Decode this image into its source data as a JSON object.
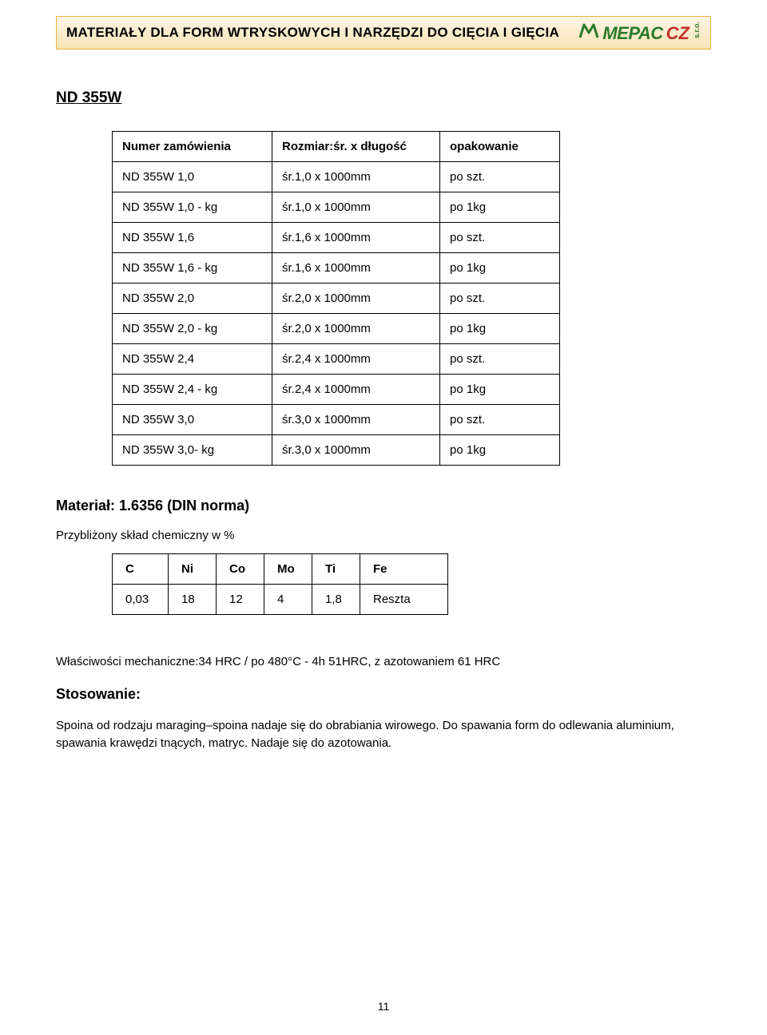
{
  "header": {
    "title": "MATERIAŁY DLA FORM WTRYSKOWYCH I NARZĘDZI DO CIĘCIA I GIĘCIA",
    "logo_main": "MEPAC",
    "logo_cz": "CZ",
    "logo_sro": "s.r.o."
  },
  "section_title": "ND 355W",
  "table1": {
    "headers": [
      "Numer zamówienia",
      "Rozmiar:śr. x długość",
      "opakowanie"
    ],
    "rows": [
      [
        "ND 355W 1,0",
        "śr.1,0 x 1000mm",
        "po szt."
      ],
      [
        "ND 355W 1,0 - kg",
        "śr.1,0 x 1000mm",
        "po 1kg"
      ],
      [
        "ND 355W 1,6",
        "śr.1,6 x 1000mm",
        "po szt."
      ],
      [
        "ND 355W 1,6 - kg",
        "śr.1,6 x 1000mm",
        "po 1kg"
      ],
      [
        "ND 355W 2,0",
        "śr.2,0 x 1000mm",
        "po szt."
      ],
      [
        "ND 355W 2,0 - kg",
        "śr.2,0 x 1000mm",
        "po 1kg"
      ],
      [
        "ND 355W 2,4",
        "śr.2,4 x 1000mm",
        "po szt."
      ],
      [
        "ND 355W 2,4 - kg",
        "śr.2,4 x 1000mm",
        "po 1kg"
      ],
      [
        "ND 355W 3,0",
        "śr.3,0 x 1000mm",
        "po szt."
      ],
      [
        "ND 355W 3,0- kg",
        "śr.3,0 x 1000mm",
        "po 1kg"
      ]
    ],
    "col_widths": [
      "200px",
      "210px",
      "150px"
    ]
  },
  "material_label": "Materiał:",
  "material_value": "1.6356 (DIN norma)",
  "chem_label": "Przybliżony skład chemiczny w %",
  "table2": {
    "headers": [
      "C",
      "Ni",
      "Co",
      "Mo",
      "Ti",
      "Fe"
    ],
    "rows": [
      [
        "0,03",
        "18",
        "12",
        "4",
        "1,8",
        "Reszta"
      ]
    ],
    "col_widths": [
      "70px",
      "60px",
      "60px",
      "60px",
      "60px",
      "110px"
    ]
  },
  "properties": "Właściwości mechaniczne:34 HRC / po 480°C - 4h 51HRC, z azotowaniem 61 HRC",
  "usage_head": "Stosowanie:",
  "usage_body": "Spoina od rodzaju maraging–spoina nadaje się do obrabiania wirowego. Do spawania form do odlewania aluminium, spawania krawędzi tnących, matryc. Nadaje się do azotowania.",
  "page_number": "11",
  "colors": {
    "header_border": "#f0b040",
    "header_bg_top": "#fdf5e6",
    "header_bg_bottom": "#f7e4b6",
    "logo_green": "#2a7a2a",
    "logo_red": "#c03028"
  }
}
